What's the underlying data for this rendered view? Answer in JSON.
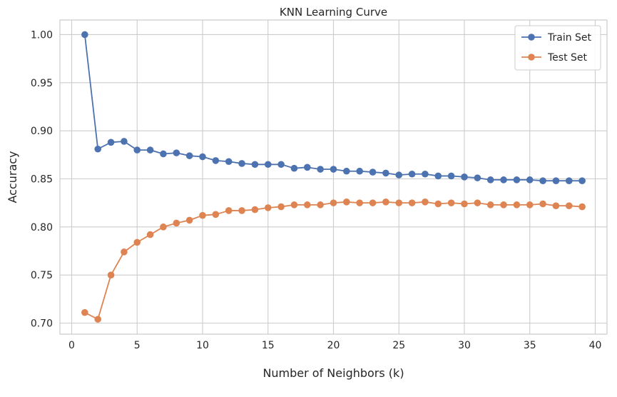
{
  "chart_data": {
    "type": "line",
    "title": "KNN Learning Curve",
    "xlabel": "Number of Neighbors (k)",
    "ylabel": "Accuracy",
    "xlim": [
      -0.9,
      40.9
    ],
    "ylim": [
      0.6885,
      1.0152
    ],
    "xticks": [
      0,
      5,
      10,
      15,
      20,
      25,
      30,
      35,
      40
    ],
    "yticks": [
      0.7,
      0.75,
      0.8,
      0.85,
      0.9,
      0.95,
      1.0
    ],
    "ytick_labels": [
      "0.70",
      "0.75",
      "0.80",
      "0.85",
      "0.90",
      "0.95",
      "1.00"
    ],
    "grid": true,
    "legend_position": "top-right",
    "x": [
      1,
      2,
      3,
      4,
      5,
      6,
      7,
      8,
      9,
      10,
      11,
      12,
      13,
      14,
      15,
      16,
      17,
      18,
      19,
      20,
      21,
      22,
      23,
      24,
      25,
      26,
      27,
      28,
      29,
      30,
      31,
      32,
      33,
      34,
      35,
      36,
      37,
      38,
      39
    ],
    "series": [
      {
        "name": "Train Set",
        "color": "#4c72b0",
        "values": [
          1.0,
          0.881,
          0.888,
          0.889,
          0.88,
          0.88,
          0.876,
          0.877,
          0.874,
          0.873,
          0.869,
          0.868,
          0.866,
          0.865,
          0.865,
          0.865,
          0.861,
          0.862,
          0.86,
          0.86,
          0.858,
          0.858,
          0.857,
          0.856,
          0.854,
          0.855,
          0.855,
          0.853,
          0.853,
          0.852,
          0.851,
          0.849,
          0.849,
          0.849,
          0.849,
          0.848,
          0.848,
          0.848,
          0.848
        ]
      },
      {
        "name": "Test Set",
        "color": "#dd8452",
        "values": [
          0.711,
          0.704,
          0.75,
          0.774,
          0.784,
          0.792,
          0.8,
          0.804,
          0.807,
          0.812,
          0.813,
          0.817,
          0.817,
          0.818,
          0.82,
          0.821,
          0.823,
          0.823,
          0.823,
          0.825,
          0.826,
          0.825,
          0.825,
          0.826,
          0.825,
          0.825,
          0.826,
          0.824,
          0.825,
          0.824,
          0.825,
          0.823,
          0.823,
          0.823,
          0.823,
          0.824,
          0.822,
          0.822,
          0.821
        ]
      }
    ]
  }
}
